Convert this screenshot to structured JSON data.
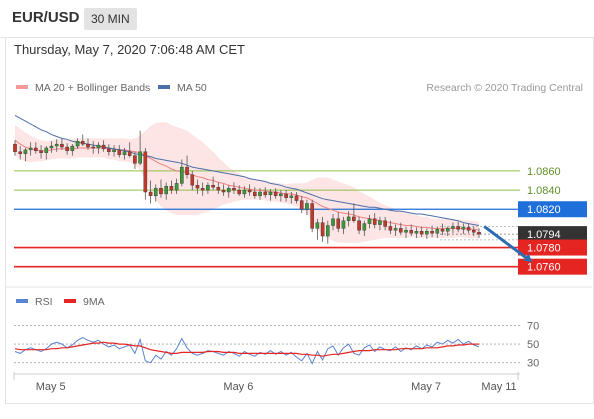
{
  "header": {
    "pair": "EUR/USD",
    "timeframe": "30 MIN"
  },
  "datetime": "Thursday, May 7, 2020 7:06:48 AM CET",
  "colors": {
    "bollinger": "#f08080",
    "bollinger_fill": "#fde0e0",
    "ma50": "#4b6fa8",
    "target": "#8fbf4a",
    "pivot": "#1e6fd9",
    "support": "#e52521",
    "current": "#333333",
    "arrow": "#2a6db5",
    "rsi": "#5b83d6",
    "rsi_ma": "#e52521",
    "candle_up": "#3a9a3a",
    "candle_down": "#c0392b"
  },
  "chart_data": [
    {
      "type": "candlestick",
      "legend": [
        {
          "label": "MA 20 + Bollinger Bands",
          "color": "#f08080"
        },
        {
          "label": "MA 50",
          "color": "#4b6fa8"
        }
      ],
      "legend_position": "top-left",
      "credit": "Research © 2020 Trading Central",
      "ylim": [
        1.0744,
        1.0932
      ],
      "x_ticks": [
        {
          "label": "May 5",
          "index": 8
        },
        {
          "label": "May 6",
          "index": 44
        },
        {
          "label": "May 7",
          "index": 80
        },
        {
          "label": "May 11",
          "index": 94
        }
      ],
      "levels": [
        {
          "value": 1.086,
          "label": "1.0860",
          "kind": "target"
        },
        {
          "value": 1.084,
          "label": "1.0840",
          "kind": "target"
        },
        {
          "value": 1.082,
          "label": "1.0820",
          "kind": "pivot"
        },
        {
          "value": 1.0794,
          "label": "1.0794",
          "kind": "current"
        },
        {
          "value": 1.078,
          "label": "1.0780",
          "kind": "support"
        },
        {
          "value": 1.076,
          "label": "1.0760",
          "kind": "support"
        }
      ],
      "projection": {
        "from_index": 90,
        "from": 1.0802,
        "to_index": 100,
        "to": 1.0765
      },
      "candles": [
        [
          1.0888,
          1.0892,
          1.0876,
          1.088
        ],
        [
          1.088,
          1.0886,
          1.0872,
          1.0878
        ],
        [
          1.0878,
          1.0884,
          1.087,
          1.0882
        ],
        [
          1.0882,
          1.089,
          1.0876,
          1.0884
        ],
        [
          1.0884,
          1.089,
          1.0878,
          1.0881
        ],
        [
          1.0881,
          1.0887,
          1.0873,
          1.0879
        ],
        [
          1.0879,
          1.0886,
          1.0872,
          1.0884
        ],
        [
          1.0884,
          1.0891,
          1.0879,
          1.0886
        ],
        [
          1.0886,
          1.0893,
          1.088,
          1.0888
        ],
        [
          1.0888,
          1.0894,
          1.0882,
          1.0885
        ],
        [
          1.0885,
          1.0889,
          1.0877,
          1.0881
        ],
        [
          1.0881,
          1.0888,
          1.0876,
          1.0886
        ],
        [
          1.0886,
          1.0894,
          1.0883,
          1.0891
        ],
        [
          1.0891,
          1.0898,
          1.0886,
          1.0888
        ],
        [
          1.0888,
          1.0894,
          1.0882,
          1.0885
        ],
        [
          1.0885,
          1.0891,
          1.0878,
          1.0884
        ],
        [
          1.0884,
          1.089,
          1.0878,
          1.0887
        ],
        [
          1.0887,
          1.0892,
          1.088,
          1.0883
        ],
        [
          1.0883,
          1.0888,
          1.0876,
          1.088
        ],
        [
          1.088,
          1.0887,
          1.0875,
          1.0882
        ],
        [
          1.0882,
          1.0887,
          1.0874,
          1.0877
        ],
        [
          1.0877,
          1.0884,
          1.0872,
          1.088
        ],
        [
          1.088,
          1.089,
          1.0874,
          1.0876
        ],
        [
          1.0876,
          1.088,
          1.0862,
          1.0868
        ],
        [
          1.0868,
          1.0902,
          1.0866,
          1.088
        ],
        [
          1.088,
          1.0884,
          1.083,
          1.0838
        ],
        [
          1.0838,
          1.085,
          1.0826,
          1.0834
        ],
        [
          1.0834,
          1.0846,
          1.0828,
          1.0842
        ],
        [
          1.0842,
          1.0851,
          1.0832,
          1.0836
        ],
        [
          1.0836,
          1.0848,
          1.083,
          1.0844
        ],
        [
          1.0844,
          1.085,
          1.0836,
          1.084
        ],
        [
          1.084,
          1.0852,
          1.0836,
          1.0847
        ],
        [
          1.0847,
          1.0872,
          1.0844,
          1.0864
        ],
        [
          1.0864,
          1.0876,
          1.0852,
          1.0856
        ],
        [
          1.0856,
          1.086,
          1.084,
          1.0845
        ],
        [
          1.0845,
          1.0851,
          1.0836,
          1.0842
        ],
        [
          1.0842,
          1.0848,
          1.0834,
          1.084
        ],
        [
          1.084,
          1.0848,
          1.0836,
          1.0845
        ],
        [
          1.0845,
          1.0854,
          1.084,
          1.0843
        ],
        [
          1.0843,
          1.0848,
          1.0836,
          1.084
        ],
        [
          1.084,
          1.0846,
          1.0834,
          1.0838
        ],
        [
          1.0838,
          1.0845,
          1.0832,
          1.0842
        ],
        [
          1.0842,
          1.0848,
          1.0836,
          1.084
        ],
        [
          1.084,
          1.0845,
          1.0834,
          1.0836
        ],
        [
          1.0836,
          1.0844,
          1.0832,
          1.084
        ],
        [
          1.084,
          1.0846,
          1.0834,
          1.0838
        ],
        [
          1.0838,
          1.0843,
          1.0831,
          1.0834
        ],
        [
          1.0834,
          1.0842,
          1.083,
          1.0838
        ],
        [
          1.0838,
          1.0843,
          1.0832,
          1.0835
        ],
        [
          1.0835,
          1.0841,
          1.0829,
          1.0838
        ],
        [
          1.0838,
          1.0842,
          1.0831,
          1.0834
        ],
        [
          1.0834,
          1.084,
          1.0828,
          1.0836
        ],
        [
          1.0836,
          1.084,
          1.0828,
          1.0832
        ],
        [
          1.0832,
          1.0838,
          1.0826,
          1.0834
        ],
        [
          1.0834,
          1.0838,
          1.0826,
          1.0829
        ],
        [
          1.0829,
          1.0834,
          1.0816,
          1.082
        ],
        [
          1.082,
          1.083,
          1.0814,
          1.0826
        ],
        [
          1.0826,
          1.083,
          1.0796,
          1.08
        ],
        [
          1.08,
          1.081,
          1.0788,
          1.0806
        ],
        [
          1.0806,
          1.0812,
          1.0786,
          1.0792
        ],
        [
          1.0792,
          1.0808,
          1.0784,
          1.0803
        ],
        [
          1.0803,
          1.0815,
          1.0798,
          1.081
        ],
        [
          1.081,
          1.0817,
          1.0796,
          1.08
        ],
        [
          1.08,
          1.0812,
          1.0794,
          1.0808
        ],
        [
          1.0808,
          1.0818,
          1.0802,
          1.0812
        ],
        [
          1.0812,
          1.0826,
          1.0806,
          1.0808
        ],
        [
          1.0808,
          1.0812,
          1.0794,
          1.0798
        ],
        [
          1.0798,
          1.0808,
          1.0792,
          1.0805
        ],
        [
          1.0805,
          1.0814,
          1.08,
          1.081
        ],
        [
          1.081,
          1.0816,
          1.08,
          1.0804
        ],
        [
          1.0804,
          1.0812,
          1.0798,
          1.0808
        ],
        [
          1.0808,
          1.0812,
          1.0798,
          1.0802
        ],
        [
          1.0802,
          1.0808,
          1.0794,
          1.0798
        ],
        [
          1.0798,
          1.0804,
          1.0792,
          1.08
        ],
        [
          1.08,
          1.0806,
          1.0793,
          1.0796
        ],
        [
          1.0796,
          1.0802,
          1.079,
          1.0798
        ],
        [
          1.0798,
          1.0804,
          1.0792,
          1.0795
        ],
        [
          1.0795,
          1.0801,
          1.079,
          1.0797
        ],
        [
          1.0797,
          1.0802,
          1.0791,
          1.0794
        ],
        [
          1.0794,
          1.08,
          1.0789,
          1.0797
        ],
        [
          1.0797,
          1.0803,
          1.0791,
          1.0795
        ],
        [
          1.0795,
          1.0802,
          1.079,
          1.0799
        ],
        [
          1.0799,
          1.0805,
          1.0793,
          1.0797
        ],
        [
          1.0797,
          1.0802,
          1.0792,
          1.08
        ],
        [
          1.08,
          1.0806,
          1.0795,
          1.0802
        ],
        [
          1.0802,
          1.0807,
          1.0796,
          1.0799
        ],
        [
          1.0799,
          1.0805,
          1.0794,
          1.0801
        ],
        [
          1.0801,
          1.0805,
          1.0795,
          1.0798
        ],
        [
          1.0798,
          1.0802,
          1.0792,
          1.0796
        ],
        [
          1.0796,
          1.08,
          1.079,
          1.0794
        ]
      ],
      "ma20": [
        1.0892,
        1.0888,
        1.0885,
        1.0883,
        1.0882,
        1.0881,
        1.0881,
        1.0882,
        1.0883,
        1.0883,
        1.0883,
        1.0883,
        1.0884,
        1.0884,
        1.0884,
        1.0884,
        1.0884,
        1.0884,
        1.0883,
        1.0883,
        1.0882,
        1.0882,
        1.0881,
        1.088,
        1.0879,
        1.0876,
        1.0873,
        1.087,
        1.0867,
        1.0865,
        1.0862,
        1.086,
        1.0859,
        1.0858,
        1.0856,
        1.0854,
        1.0853,
        1.0851,
        1.085,
        1.0848,
        1.0847,
        1.0845,
        1.0844,
        1.0843,
        1.0842,
        1.0841,
        1.084,
        1.084,
        1.0839,
        1.0838,
        1.0838,
        1.0837,
        1.0836,
        1.0836,
        1.0835,
        1.0833,
        1.0832,
        1.0829,
        1.0826,
        1.0823,
        1.0821,
        1.0819,
        1.0817,
        1.0816,
        1.0815,
        1.0814,
        1.0812,
        1.0811,
        1.081,
        1.0809,
        1.0808,
        1.0807,
        1.0806,
        1.0805,
        1.0804,
        1.0803,
        1.0803,
        1.0802,
        1.0801,
        1.0801,
        1.08,
        1.08,
        1.08,
        1.08,
        1.08,
        1.08,
        1.08,
        1.0799,
        1.0799,
        1.0798
      ],
      "bb_width": [
        0.0016,
        0.0016,
        0.0015,
        0.0014,
        0.0012,
        0.0011,
        0.001,
        0.001,
        0.001,
        0.001,
        0.001,
        0.001,
        0.001,
        0.001,
        0.001,
        0.001,
        0.001,
        0.001,
        0.0011,
        0.0011,
        0.0012,
        0.0012,
        0.0012,
        0.0014,
        0.0018,
        0.0026,
        0.0034,
        0.004,
        0.0044,
        0.0046,
        0.0046,
        0.0046,
        0.0045,
        0.0044,
        0.0042,
        0.004,
        0.0037,
        0.0034,
        0.003,
        0.0026,
        0.0022,
        0.0019,
        0.0016,
        0.0014,
        0.0012,
        0.0011,
        0.001,
        0.001,
        0.001,
        0.001,
        0.001,
        0.001,
        0.001,
        0.0011,
        0.0012,
        0.0014,
        0.0016,
        0.0022,
        0.0027,
        0.003,
        0.0032,
        0.0032,
        0.0032,
        0.0031,
        0.003,
        0.0029,
        0.0027,
        0.0025,
        0.0023,
        0.0021,
        0.0019,
        0.0017,
        0.0016,
        0.0015,
        0.0014,
        0.0013,
        0.0012,
        0.0012,
        0.0011,
        0.0011,
        0.001,
        0.001,
        0.001,
        0.001,
        0.001,
        0.0009,
        0.0009,
        0.0009,
        0.0009,
        0.0009
      ],
      "ma50": [
        1.0918,
        1.0915,
        1.0912,
        1.0909,
        1.0906,
        1.0903,
        1.0901,
        1.0898,
        1.0896,
        1.0894,
        1.0893,
        1.0891,
        1.089,
        1.0889,
        1.0888,
        1.0887,
        1.0886,
        1.0885,
        1.0884,
        1.0883,
        1.0882,
        1.0881,
        1.088,
        1.0878,
        1.0877,
        1.0876,
        1.0875,
        1.0873,
        1.0872,
        1.0871,
        1.087,
        1.0869,
        1.0868,
        1.0866,
        1.0864,
        1.0863,
        1.0862,
        1.0861,
        1.086,
        1.0859,
        1.0858,
        1.0857,
        1.0856,
        1.0855,
        1.0854,
        1.0852,
        1.0851,
        1.085,
        1.0849,
        1.0847,
        1.0846,
        1.0845,
        1.0843,
        1.0842,
        1.0841,
        1.0839,
        1.0837,
        1.0835,
        1.0833,
        1.0831,
        1.083,
        1.0829,
        1.0828,
        1.0827,
        1.0826,
        1.0825,
        1.0824,
        1.0823,
        1.0822,
        1.0822,
        1.0821,
        1.082,
        1.0819,
        1.0818,
        1.0818,
        1.0817,
        1.0816,
        1.0815,
        1.0815,
        1.0814,
        1.0813,
        1.0812,
        1.0811,
        1.081,
        1.0809,
        1.0808,
        1.0806,
        1.0805,
        1.0804,
        1.0803
      ]
    },
    {
      "type": "line",
      "legend": [
        {
          "label": "RSI",
          "color": "#5b83d6"
        },
        {
          "label": "9MA",
          "color": "#e52521"
        }
      ],
      "legend_position": "top-left",
      "ylim": [
        20,
        78
      ],
      "levels": [
        {
          "value": 70,
          "label": "70"
        },
        {
          "value": 50,
          "label": "50"
        },
        {
          "value": 30,
          "label": "30"
        }
      ],
      "series": [
        {
          "name": "RSI",
          "values": [
            42,
            40,
            44,
            46,
            44,
            42,
            45,
            50,
            52,
            50,
            46,
            49,
            54,
            57,
            54,
            52,
            54,
            50,
            47,
            49,
            45,
            47,
            49,
            40,
            55,
            32,
            30,
            38,
            34,
            42,
            38,
            45,
            56,
            46,
            40,
            38,
            40,
            43,
            42,
            40,
            38,
            42,
            40,
            37,
            42,
            39,
            37,
            41,
            39,
            43,
            39,
            42,
            38,
            41,
            36,
            32,
            40,
            29,
            42,
            33,
            45,
            48,
            38,
            46,
            50,
            40,
            38,
            46,
            49,
            42,
            47,
            44,
            43,
            47,
            42,
            46,
            44,
            48,
            45,
            49,
            47,
            52,
            50,
            54,
            51,
            55,
            50,
            53,
            49,
            47
          ]
        },
        {
          "name": "9MA",
          "values": [
            45,
            44,
            44,
            44,
            44,
            44,
            44,
            45,
            45,
            46,
            46,
            47,
            48,
            49,
            50,
            51,
            51,
            52,
            51,
            51,
            50,
            50,
            49,
            48,
            48,
            46,
            44,
            43,
            42,
            41,
            40,
            40,
            41,
            41,
            41,
            41,
            41,
            42,
            42,
            42,
            41,
            41,
            41,
            40,
            40,
            40,
            40,
            40,
            40,
            40,
            40,
            40,
            40,
            40,
            40,
            39,
            39,
            38,
            38,
            37,
            38,
            39,
            39,
            40,
            41,
            42,
            43,
            43,
            43,
            44,
            44,
            44,
            44,
            44,
            45,
            45,
            45,
            45,
            45,
            46,
            46,
            46,
            47,
            48,
            48,
            49,
            49,
            50,
            50,
            50
          ]
        }
      ]
    }
  ]
}
